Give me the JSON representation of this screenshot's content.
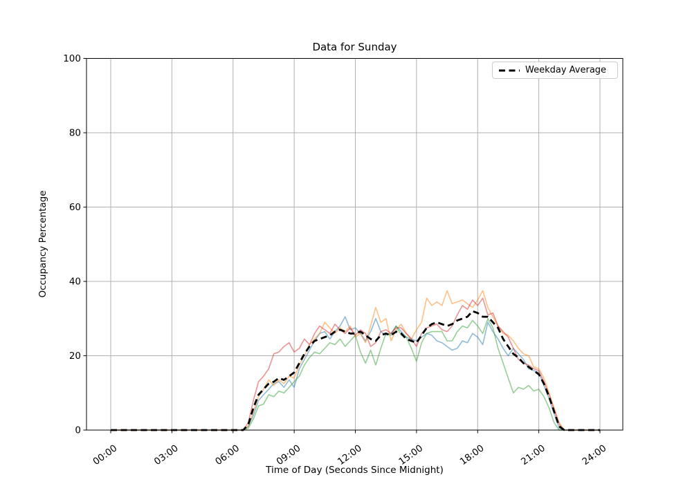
{
  "figure": {
    "title": "Data for Sunday",
    "legend": {
      "label": "Weekday Average"
    }
  },
  "chart_data": {
    "type": "line",
    "title": "Data for Sunday",
    "xlabel": "Time of Day (Seconds Since Midnight)",
    "ylabel": "Occupancy Percentage",
    "xlim": [
      0,
      86400
    ],
    "ylim": [
      0,
      100
    ],
    "grid": true,
    "legend_position": "upper right",
    "x_tick_seconds": [
      0,
      10800,
      21600,
      32400,
      43200,
      54000,
      64800,
      75600,
      86400
    ],
    "x_tick_labels": [
      "00:00",
      "03:00",
      "06:00",
      "09:00",
      "12:00",
      "15:00",
      "18:00",
      "21:00",
      "24:00"
    ],
    "y_ticks": [
      0,
      20,
      40,
      60,
      80,
      100
    ],
    "x_start_seconds": 0,
    "x_step_seconds": 900,
    "grid_color": "#b0b0b0",
    "series": [
      {
        "name": "sunday-series-1",
        "color": "rgba(31,119,180,0.5)",
        "width": 1.6,
        "dashed": false,
        "in_legend": false,
        "values": [
          0,
          0,
          0,
          0,
          0,
          0,
          0,
          0,
          0,
          0,
          0,
          0,
          0,
          0,
          0,
          0,
          0,
          0,
          0,
          0,
          0,
          0,
          0,
          0,
          0,
          0,
          0,
          1,
          4,
          8,
          9.5,
          11,
          12.5,
          13,
          11.5,
          13.5,
          11.5,
          16.5,
          19,
          21.5,
          24,
          26,
          26.5,
          24.5,
          26.5,
          28,
          30.5,
          27,
          27.5,
          26,
          24,
          26.5,
          30,
          26.5,
          25.5,
          26,
          28,
          26.5,
          25,
          24.5,
          24,
          25,
          26,
          25.5,
          24,
          23.5,
          22.5,
          21.5,
          22,
          24,
          23.5,
          26,
          25,
          23,
          29,
          26.5,
          24.5,
          22,
          20,
          22,
          20.5,
          19,
          16.5,
          16,
          15.5,
          12,
          8.5,
          4.5,
          0.5,
          0,
          0,
          0,
          0,
          0,
          0,
          0,
          0
        ]
      },
      {
        "name": "sunday-series-2",
        "color": "rgba(255,127,14,0.5)",
        "width": 1.6,
        "dashed": false,
        "in_legend": false,
        "values": [
          0,
          0,
          0,
          0,
          0,
          0,
          0,
          0,
          0,
          0,
          0,
          0,
          0,
          0,
          0,
          0,
          0,
          0,
          0,
          0,
          0,
          0,
          0,
          0,
          0,
          0,
          0,
          1,
          5,
          9,
          11,
          13.5,
          12,
          13.5,
          12.5,
          14.5,
          14,
          17.5,
          20,
          23,
          24.5,
          26,
          29,
          27.5,
          26,
          27.5,
          26.5,
          28,
          25,
          26,
          23.5,
          28,
          33,
          29,
          30,
          24,
          27,
          28.5,
          26,
          24.5,
          27,
          29,
          35.5,
          33.5,
          34.5,
          33.5,
          37.5,
          34,
          34.5,
          35,
          34,
          33,
          35,
          37.5,
          33,
          30.5,
          28,
          26,
          25.5,
          24,
          22,
          20.5,
          20,
          17,
          16.5,
          14,
          10,
          6,
          2,
          0,
          0,
          0,
          0,
          0,
          0,
          0,
          0
        ]
      },
      {
        "name": "sunday-series-3",
        "color": "rgba(44,160,44,0.5)",
        "width": 1.6,
        "dashed": false,
        "in_legend": false,
        "values": [
          0,
          0,
          0,
          0,
          0,
          0,
          0,
          0,
          0,
          0,
          0,
          0,
          0,
          0,
          0,
          0,
          0,
          0,
          0,
          0,
          0,
          0,
          0,
          0,
          0,
          0,
          0,
          0.5,
          3,
          6.5,
          7,
          9.5,
          9,
          10.5,
          10,
          11.5,
          13,
          14.5,
          17.5,
          19.5,
          21,
          20.5,
          22,
          23.5,
          23,
          24.5,
          22.5,
          24,
          25.5,
          21,
          18,
          21.5,
          17.5,
          22,
          26,
          25.5,
          28,
          25.5,
          25,
          22,
          18.5,
          23.5,
          26,
          26.5,
          26.5,
          26.5,
          24,
          24,
          26.5,
          28,
          27.5,
          29.5,
          28,
          26,
          30,
          27.5,
          22,
          18,
          14,
          10,
          11.5,
          11,
          12,
          10.5,
          11,
          9,
          6,
          2,
          0,
          0,
          0,
          0,
          0,
          0,
          0,
          0,
          0
        ]
      },
      {
        "name": "sunday-series-4",
        "color": "rgba(214,39,40,0.5)",
        "width": 1.6,
        "dashed": false,
        "in_legend": false,
        "values": [
          0,
          0,
          0,
          0,
          0,
          0,
          0,
          0,
          0,
          0,
          0,
          0,
          0,
          0,
          0,
          0,
          0,
          0,
          0,
          0,
          0,
          0,
          0,
          0,
          0,
          0,
          0,
          2,
          8,
          13,
          14.5,
          16.5,
          20.5,
          21,
          22.5,
          23.5,
          21,
          22,
          24.5,
          23,
          26,
          28,
          27,
          26,
          28.5,
          27,
          26,
          27.5,
          25.5,
          27,
          26,
          22.5,
          23.5,
          26.5,
          27,
          26,
          27.5,
          27.5,
          26,
          24.5,
          22.5,
          26,
          27.5,
          28,
          28.5,
          27,
          26.5,
          28,
          31,
          33.5,
          32.5,
          35,
          33.5,
          35.5,
          31,
          31.5,
          28,
          26.5,
          25,
          22,
          19,
          18,
          17.5,
          16.5,
          16,
          13,
          9.5,
          5.5,
          1.5,
          0,
          0,
          0,
          0,
          0,
          0,
          0,
          0
        ]
      },
      {
        "name": "Weekday Average",
        "color": "#000000",
        "width": 2.8,
        "dashed": true,
        "in_legend": true,
        "values": [
          0,
          0,
          0,
          0,
          0,
          0,
          0,
          0,
          0,
          0,
          0,
          0,
          0,
          0,
          0,
          0,
          0,
          0,
          0,
          0,
          0,
          0,
          0,
          0,
          0,
          0,
          0,
          1.5,
          6,
          9.5,
          11,
          12.5,
          13,
          14,
          13.5,
          14.5,
          15.5,
          18,
          20.5,
          22.5,
          24,
          24.5,
          25,
          25.5,
          26.5,
          27,
          26.5,
          26,
          26,
          26.5,
          25.5,
          24.5,
          24,
          25.5,
          26,
          25.5,
          26.5,
          26,
          24.5,
          24,
          23.5,
          25.5,
          27.5,
          28.5,
          29,
          28.5,
          28,
          28.5,
          29.5,
          30,
          30.5,
          32,
          31.5,
          30.5,
          30.5,
          29,
          27.5,
          24.5,
          22.5,
          20.5,
          19.5,
          18,
          17,
          16,
          15,
          12.5,
          9,
          5,
          1,
          0,
          0,
          0,
          0,
          0,
          0,
          0,
          0
        ]
      }
    ]
  }
}
